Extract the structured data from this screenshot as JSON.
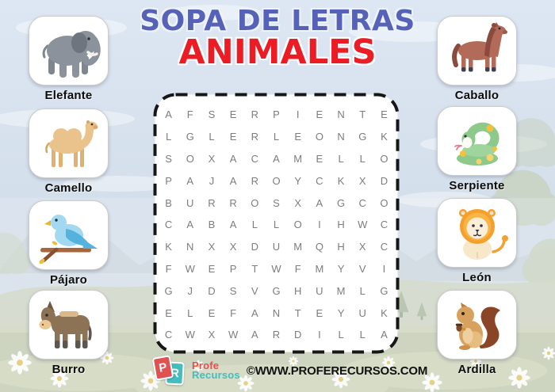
{
  "title": {
    "line1": "SOPA DE LETRAS",
    "line2": "ANIMALES"
  },
  "colors": {
    "title_blue": "#5661b8",
    "title_red": "#ec1c24",
    "letter_gray": "#7d7d7d",
    "label_black": "#0c0c0c",
    "logo_red": "#e05151",
    "logo_teal": "#43bdbd",
    "website_black": "#111111"
  },
  "animals_left": [
    {
      "label": "Elefante",
      "icon": "elephant-icon"
    },
    {
      "label": "Camello",
      "icon": "camel-icon"
    },
    {
      "label": "Pájaro",
      "icon": "bird-icon"
    },
    {
      "label": "Burro",
      "icon": "donkey-icon"
    }
  ],
  "animals_right": [
    {
      "label": "Caballo",
      "icon": "horse-icon"
    },
    {
      "label": "Serpiente",
      "icon": "snake-icon"
    },
    {
      "label": "León",
      "icon": "lion-icon"
    },
    {
      "label": "Ardilla",
      "icon": "squirrel-icon"
    }
  ],
  "puzzle": {
    "rows": [
      "AFSERPIENTE",
      "LGLERLEONGK",
      "SOXACAMELLO",
      "PAJAROYCKXD",
      "BURROSXAGCO",
      "CABALLOIHWC",
      "KNXXDUMQHXC",
      "FWEPTWFMYVI",
      "GJDSVGHUMLG",
      "ELEFANTEYUK",
      "CWXWARDILLA"
    ]
  },
  "footer": {
    "logo_letter_p": "P",
    "logo_letter_r": "R",
    "brand_line1": "Profe",
    "brand_line2": "Recursos",
    "website": "©WWW.PROFERECURSOS.COM"
  }
}
